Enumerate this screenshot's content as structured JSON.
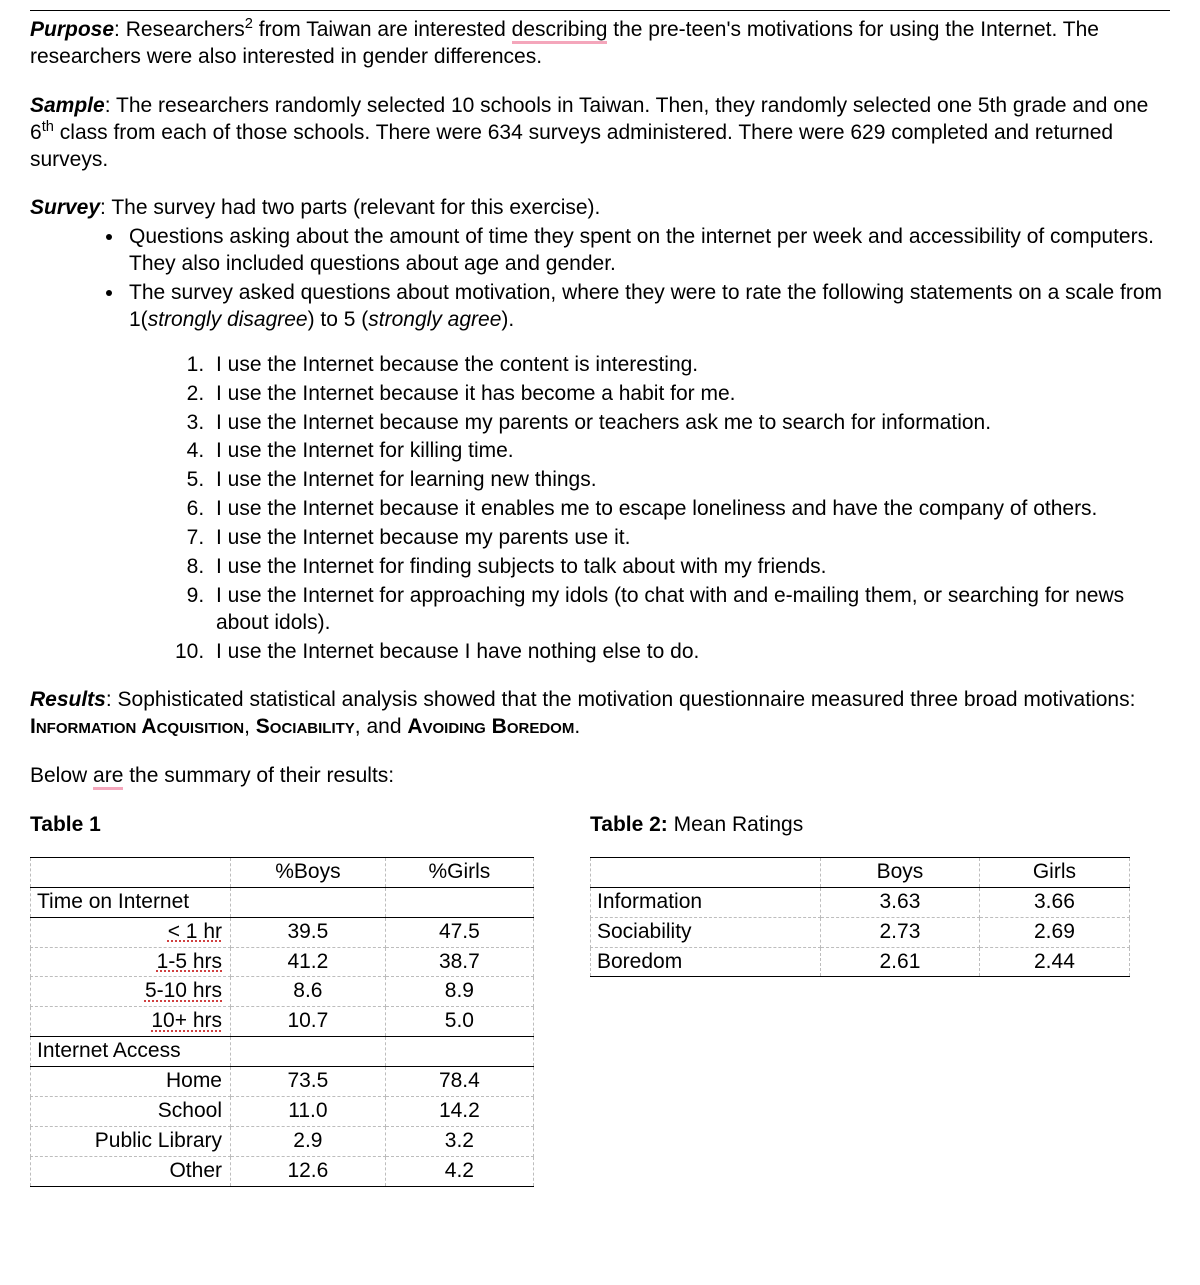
{
  "purpose": {
    "label": "Purpose",
    "text_a": ": Researchers",
    "sup": "2",
    "text_b": " from Taiwan are interested ",
    "underlined": "describing",
    "text_c": " the pre-teen's motivations for using the Internet. The researchers were also interested in gender differences."
  },
  "sample": {
    "label": "Sample",
    "text_a": ": The researchers randomly selected 10 schools in Taiwan. Then, they randomly selected one 5th grade and one 6",
    "sup": "th",
    "text_b": " class from each of those schools. There were 634 surveys administered. There were 629 completed and returned surveys."
  },
  "survey": {
    "label": "Survey",
    "intro": ": The survey had two parts (relevant for this exercise).",
    "bullets": [
      "Questions asking about the amount of time they spent on the internet per week and accessibility of computers. They also included questions about age and gender.",
      "The survey asked questions about motivation, where they were to rate the following statements on a scale from 1(strongly disagree) to 5 (strongly agree)."
    ],
    "items": [
      "I use the Internet because the content is interesting.",
      "I use the Internet because it has become a habit for me.",
      "I use the Internet because my parents or teachers ask me to search for information.",
      "I use the Internet for killing time.",
      "I use the Internet for learning new things.",
      "I use the Internet because it enables me to escape loneliness and have the company of others.",
      "I use the Internet because my parents use it.",
      "I use the Internet for finding subjects to talk about with my friends.",
      "I use the Internet for approaching my idols (to chat with and e-mailing them, or searching for news about idols).",
      "I use the Internet because I have nothing else to do."
    ]
  },
  "results": {
    "label": "Results",
    "text_a": ": Sophisticated statistical analysis showed that the motivation questionnaire measured three broad motivations: ",
    "m1": "Information Acquisition",
    "sep1": ", ",
    "m2": "Sociability",
    "sep2": ", and ",
    "m3": "Avoiding Boredom",
    "text_b": "."
  },
  "below_text_a": "Below ",
  "below_underlined": "are",
  "below_text_b": " the summary of their results:",
  "table1": {
    "title": "Table 1",
    "col_boys": "%Boys",
    "col_girls": "%Girls",
    "section1": "Time on Internet",
    "rows1": [
      {
        "label": "< 1 hr",
        "boys": "39.5",
        "girls": "47.5",
        "dotted": true
      },
      {
        "label": "1-5 hrs",
        "boys": "41.2",
        "girls": "38.7",
        "dotted": true
      },
      {
        "label": "5-10 hrs",
        "boys": "8.6",
        "girls": "8.9",
        "dotted": true
      },
      {
        "label": "10+ hrs",
        "boys": "10.7",
        "girls": "5.0",
        "dotted": true
      }
    ],
    "section2": "Internet Access",
    "rows2": [
      {
        "label": "Home",
        "boys": "73.5",
        "girls": "78.4"
      },
      {
        "label": "School",
        "boys": "11.0",
        "girls": "14.2"
      },
      {
        "label": "Public Library",
        "boys": "2.9",
        "girls": "3.2"
      },
      {
        "label": "Other",
        "boys": "12.6",
        "girls": "4.2"
      }
    ]
  },
  "table2": {
    "title": "Table 2:",
    "subtitle": " Mean Ratings",
    "col_boys": "Boys",
    "col_girls": "Girls",
    "rows": [
      {
        "label": "Information",
        "boys": "3.63",
        "girls": "3.66"
      },
      {
        "label": "Sociability",
        "boys": "2.73",
        "girls": "2.69"
      },
      {
        "label": "Boredom",
        "boys": "2.61",
        "girls": "2.44"
      }
    ]
  },
  "style": {
    "font_family": "Arial",
    "base_fontsize_pt": 16,
    "text_color": "#000000",
    "background_color": "#ffffff",
    "spell_underline_color": "#f4a6bb",
    "table_border_solid": "#000000",
    "table_border_dashed": "#bdbdbd"
  }
}
